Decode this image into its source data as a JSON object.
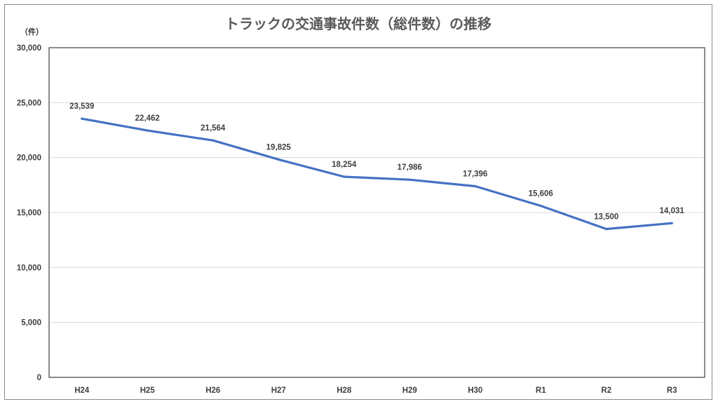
{
  "chart_data": {
    "type": "line",
    "title": "トラックの交通事故件数（総件数）の推移",
    "unit_label": "（件）",
    "categories": [
      "H24",
      "H25",
      "H26",
      "H27",
      "H28",
      "H29",
      "H30",
      "R1",
      "R2",
      "R3"
    ],
    "series": [
      {
        "values": [
          23539,
          22462,
          21564,
          19825,
          18254,
          17986,
          17396,
          15606,
          13500,
          14031
        ],
        "labels": [
          "23,539",
          "22,462",
          "21,564",
          "19,825",
          "18,254",
          "17,986",
          "17,396",
          "15,606",
          "13,500",
          "14,031"
        ],
        "color": "#4472c4"
      }
    ],
    "ylim": [
      0,
      30000
    ],
    "yticks": [
      0,
      5000,
      10000,
      15000,
      20000,
      25000,
      30000
    ],
    "ytick_labels": [
      "0",
      "5,000",
      "10,000",
      "15,000",
      "20,000",
      "25,000",
      "30,000"
    ],
    "grid": true,
    "grid_color": "#d9d9d9",
    "line_color": "#4472c4",
    "legend": "none"
  }
}
